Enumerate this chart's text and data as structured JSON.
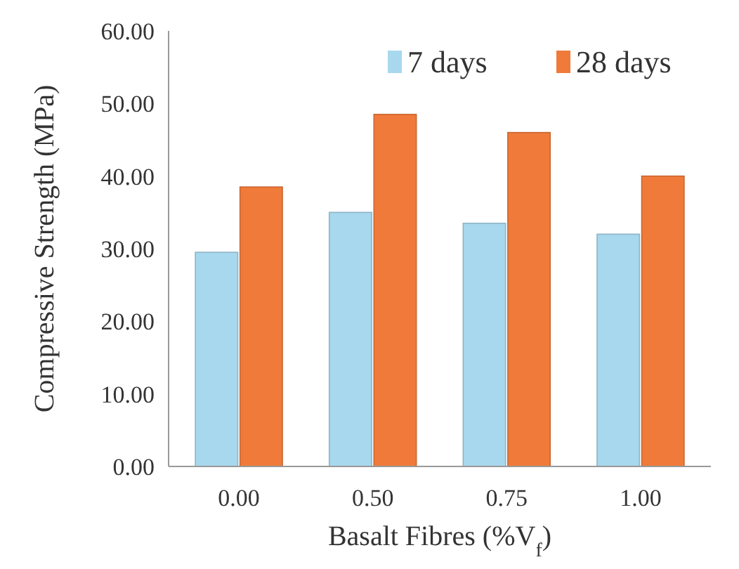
{
  "chart_data": {
    "type": "bar",
    "xlabel": "Basalt Fibres (%V$_{f}$)",
    "ylabel": "Compressive Strength (MPa)",
    "categories": [
      "0.00",
      "0.50",
      "0.75",
      "1.00"
    ],
    "series": [
      {
        "name": "7 days",
        "color": "#a8d8ee",
        "values": [
          29.5,
          35,
          33.5,
          32
        ]
      },
      {
        "name": "28 days",
        "color": "#f07a3a",
        "values": [
          38.5,
          48.5,
          46,
          40
        ]
      }
    ],
    "ylim": [
      0,
      60
    ],
    "yticks": [
      {
        "value": 0,
        "label": "0.00"
      },
      {
        "value": 10,
        "label": "10.00"
      },
      {
        "value": 20,
        "label": "20.00"
      },
      {
        "value": 30,
        "label": "30.00"
      },
      {
        "value": 40,
        "label": "40.00"
      },
      {
        "value": 50,
        "label": "50.00"
      },
      {
        "value": 60,
        "label": "60.00"
      }
    ],
    "grid": false,
    "legend": "top right"
  }
}
